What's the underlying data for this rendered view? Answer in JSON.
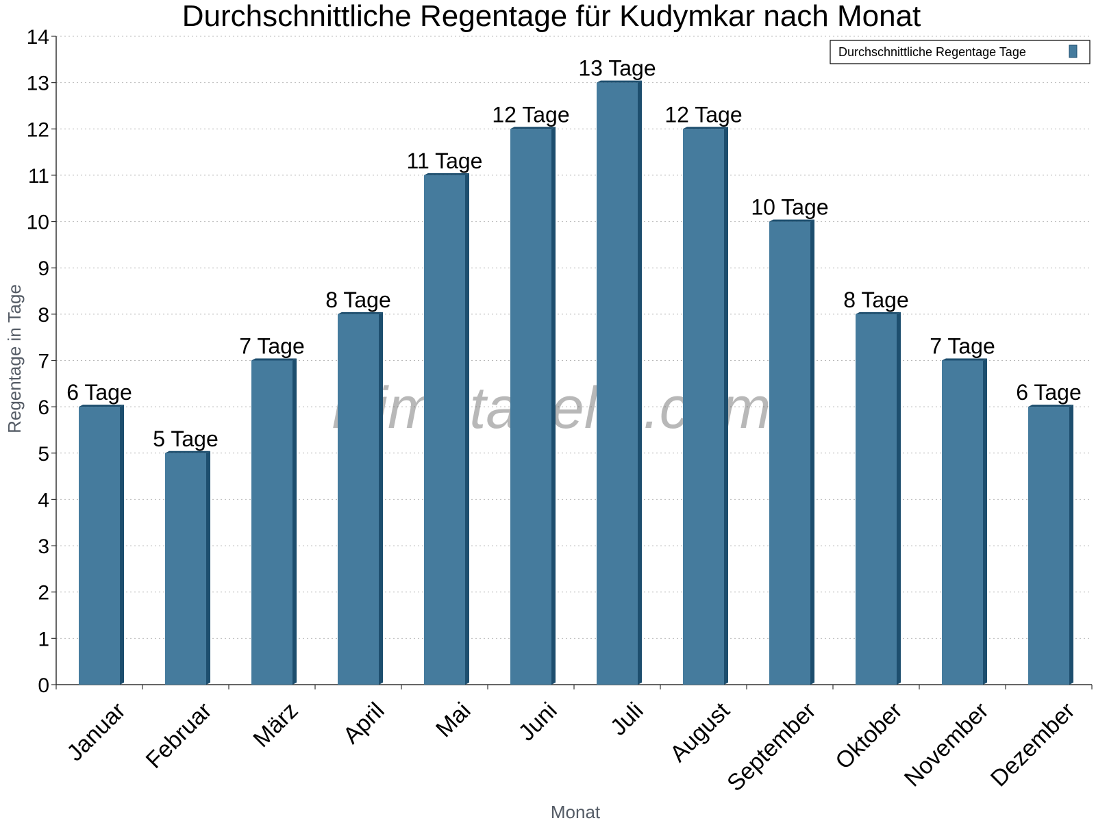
{
  "chart_data": {
    "type": "bar",
    "title": "Durchschnittliche Regentage für Kudymkar nach Monat",
    "xlabel": "Monat",
    "ylabel": "Regentage in Tage",
    "categories": [
      "Januar",
      "Februar",
      "März",
      "April",
      "Mai",
      "Juni",
      "Juli",
      "August",
      "September",
      "Oktober",
      "November",
      "Dezember"
    ],
    "series": [
      {
        "name": "Durchschnittliche Regentage Tage",
        "values": [
          6,
          5,
          7,
          8,
          11,
          12,
          13,
          12,
          10,
          8,
          7,
          6
        ],
        "data_labels": [
          "6 Tage",
          "5 Tage",
          "7 Tage",
          "8 Tage",
          "11 Tage",
          "12 Tage",
          "13 Tage",
          "12 Tage",
          "10 Tage",
          "8 Tage",
          "7 Tage",
          "6 Tage"
        ],
        "color": "#457b9d",
        "side_color": "#1d4e6e"
      }
    ],
    "ylim": [
      0,
      14
    ],
    "yticks": [
      0,
      1,
      2,
      3,
      4,
      5,
      6,
      7,
      8,
      9,
      10,
      11,
      12,
      13,
      14
    ],
    "grid": true,
    "legend_position": "top-right"
  },
  "watermark": "klimatabelle.com"
}
